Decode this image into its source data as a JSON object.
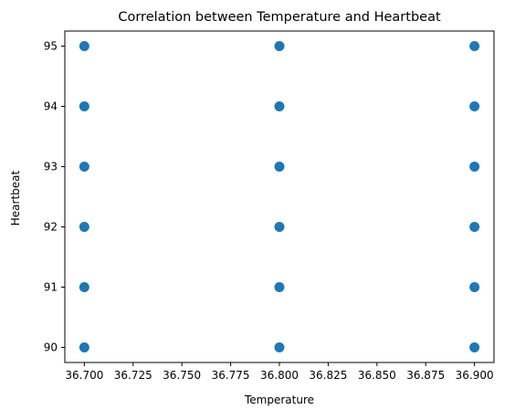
{
  "chart_data": {
    "type": "scatter",
    "title": "Correlation between Temperature and Heartbeat",
    "xlabel": "Temperature",
    "ylabel": "Heartbeat",
    "xlim": [
      36.69,
      36.91
    ],
    "ylim": [
      89.75,
      95.25
    ],
    "xticks": [
      36.7,
      36.725,
      36.75,
      36.775,
      36.8,
      36.825,
      36.85,
      36.875,
      36.9
    ],
    "xtick_labels": [
      "36.700",
      "36.725",
      "36.750",
      "36.775",
      "36.800",
      "36.825",
      "36.850",
      "36.875",
      "36.900"
    ],
    "yticks": [
      90,
      91,
      92,
      93,
      94,
      95
    ],
    "ytick_labels": [
      "90",
      "91",
      "92",
      "93",
      "94",
      "95"
    ],
    "grid": false,
    "marker_color": "#1f77b4",
    "series": [
      {
        "x": [
          36.7,
          36.7,
          36.7,
          36.7,
          36.7,
          36.7,
          36.8,
          36.8,
          36.8,
          36.8,
          36.8,
          36.8,
          36.9,
          36.9,
          36.9,
          36.9,
          36.9,
          36.9
        ],
        "y": [
          90,
          91,
          92,
          93,
          94,
          95,
          90,
          91,
          92,
          93,
          94,
          95,
          90,
          91,
          92,
          93,
          94,
          95
        ]
      }
    ]
  }
}
